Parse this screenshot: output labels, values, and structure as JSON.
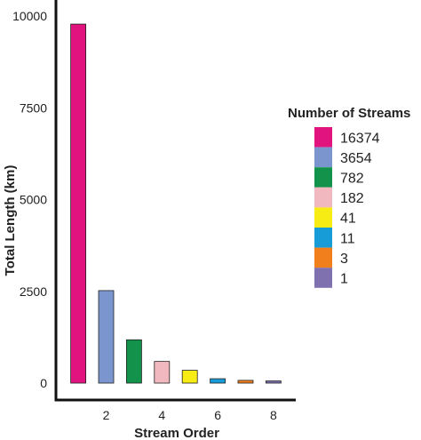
{
  "chart_data": {
    "type": "bar",
    "xlabel": "Stream Order",
    "ylabel": "Total Length (km)",
    "x": [
      1,
      2,
      3,
      4,
      5,
      6,
      7,
      8
    ],
    "values": [
      9780,
      2520,
      1180,
      590,
      350,
      120,
      75,
      60
    ],
    "ylim": [
      0,
      10000
    ],
    "xlim": [
      0.2,
      8.8
    ],
    "yticks": [
      "0",
      "2500",
      "5000",
      "7500",
      "10000"
    ],
    "xticks": [
      "2",
      "4",
      "6",
      "8"
    ],
    "grid": false,
    "legend": {
      "title": "Number of Streams",
      "placement": "right",
      "labels": [
        "16374",
        "3654",
        "782",
        "182",
        "41",
        "11",
        "3",
        "1"
      ]
    },
    "colors": [
      "#e0137f",
      "#7b96cf",
      "#12924a",
      "#f2b8bf",
      "#f7ec13",
      "#179cd8",
      "#f07f1c",
      "#7f70b0"
    ]
  }
}
